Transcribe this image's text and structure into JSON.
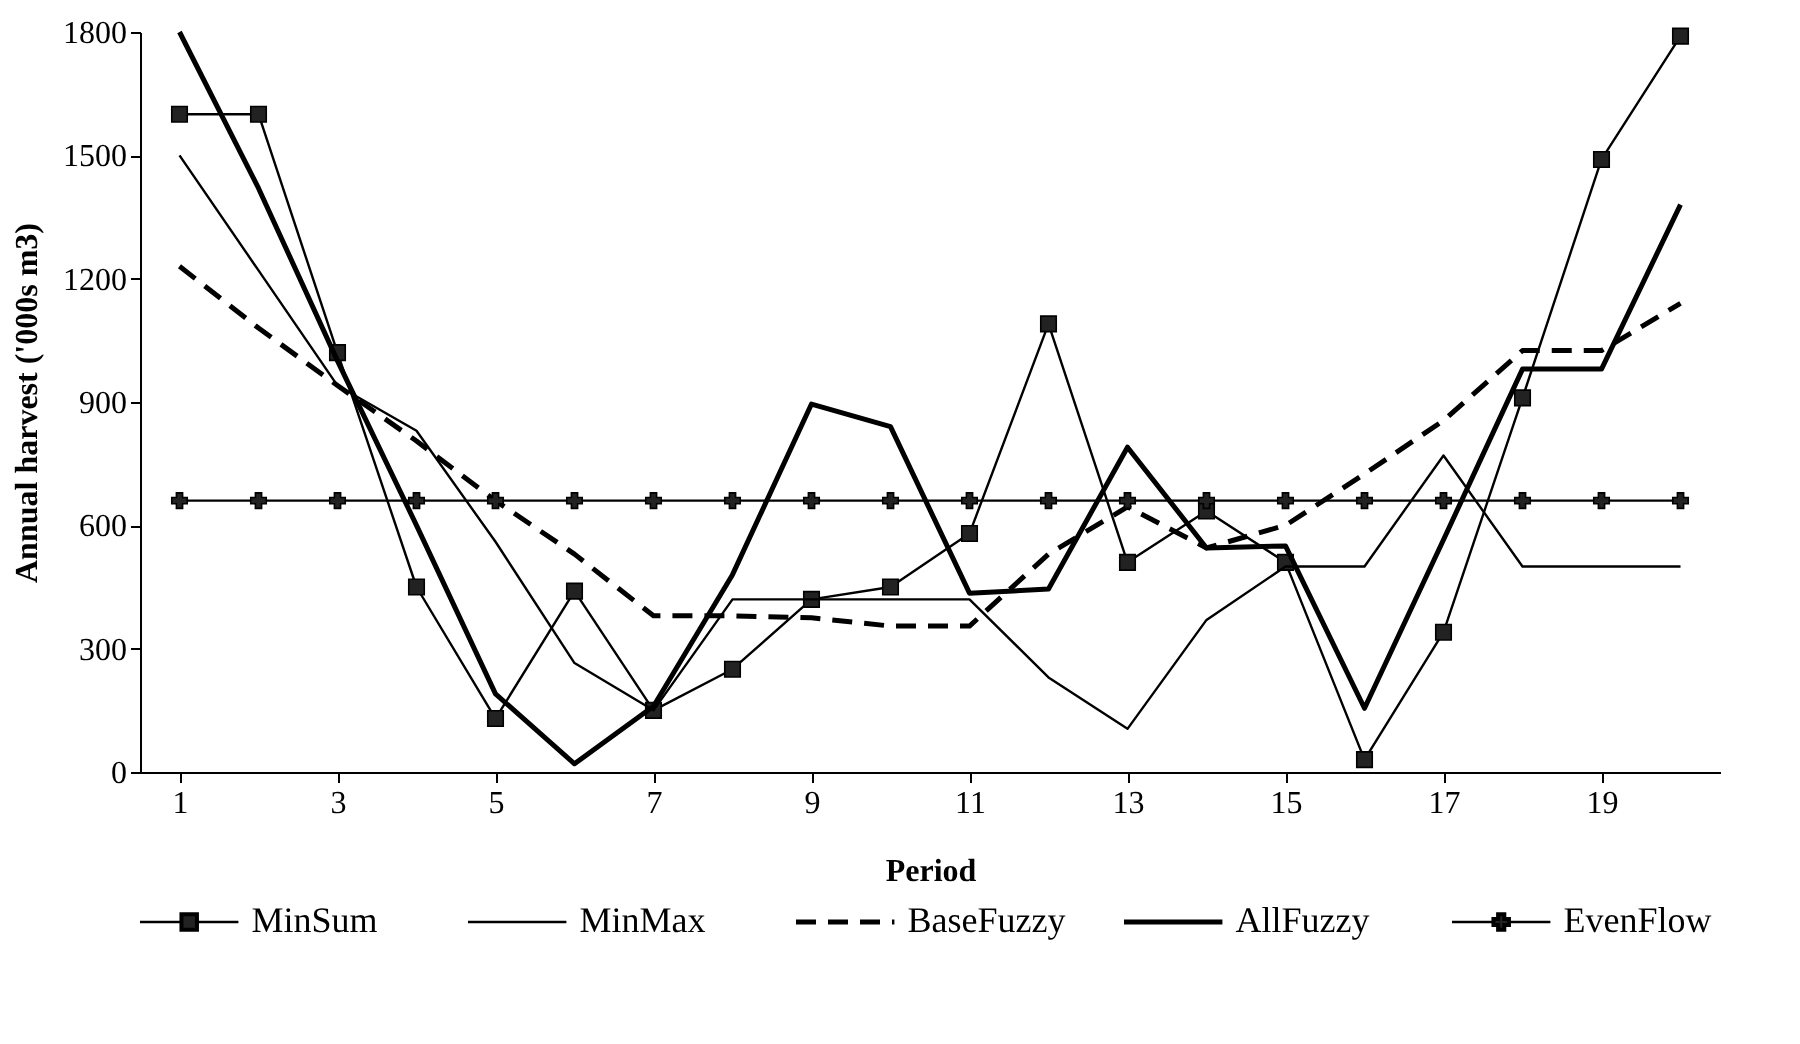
{
  "chart_data": {
    "type": "line",
    "xlabel": "Period",
    "ylabel": "Annual harvest ('000s m3)",
    "x": [
      1,
      2,
      3,
      4,
      5,
      6,
      7,
      8,
      9,
      10,
      11,
      12,
      13,
      14,
      15,
      16,
      17,
      18,
      19,
      20
    ],
    "xlim": [
      0.5,
      20.5
    ],
    "xticks": [
      1,
      3,
      5,
      7,
      9,
      11,
      13,
      15,
      17,
      19
    ],
    "ylim": [
      0,
      1800
    ],
    "yticks": [
      0,
      300,
      600,
      900,
      1200,
      1500,
      1800
    ],
    "grid": false,
    "legend": "bottom",
    "series": [
      {
        "name": "MinSum",
        "color": "#000000",
        "marker": "square",
        "line_style": "solid",
        "values": [
          1600,
          1600,
          1020,
          450,
          130,
          440,
          150,
          250,
          420,
          450,
          580,
          1090,
          510,
          635,
          510,
          30,
          340,
          910,
          1490,
          1790
        ]
      },
      {
        "name": "MinMax",
        "color": "#000000",
        "marker": "none",
        "line_style": "solid",
        "values": [
          1500,
          1220,
          940,
          830,
          560,
          265,
          150,
          420,
          420,
          420,
          420,
          230,
          105,
          370,
          500,
          500,
          770,
          500,
          500,
          500
        ]
      },
      {
        "name": "BaseFuzzy",
        "color": "#000000",
        "marker": "none",
        "line_style": "dashed",
        "values": [
          1230,
          1080,
          940,
          805,
          660,
          530,
          380,
          380,
          375,
          355,
          355,
          530,
          645,
          545,
          600,
          725,
          855,
          1025,
          1025,
          1140
        ]
      },
      {
        "name": "AllFuzzy",
        "color": "#000000",
        "marker": "none",
        "line_style": "solid",
        "values": [
          1800,
          1420,
          1000,
          600,
          190,
          20,
          160,
          480,
          895,
          840,
          435,
          445,
          790,
          545,
          550,
          155,
          565,
          980,
          980,
          1380
        ]
      },
      {
        "name": "EvenFlow",
        "color": "#000000",
        "marker": "cross",
        "line_style": "solid",
        "values": [
          660,
          660,
          660,
          660,
          660,
          660,
          660,
          660,
          660,
          660,
          660,
          660,
          660,
          660,
          660,
          660,
          660,
          660,
          660,
          660
        ]
      }
    ]
  }
}
